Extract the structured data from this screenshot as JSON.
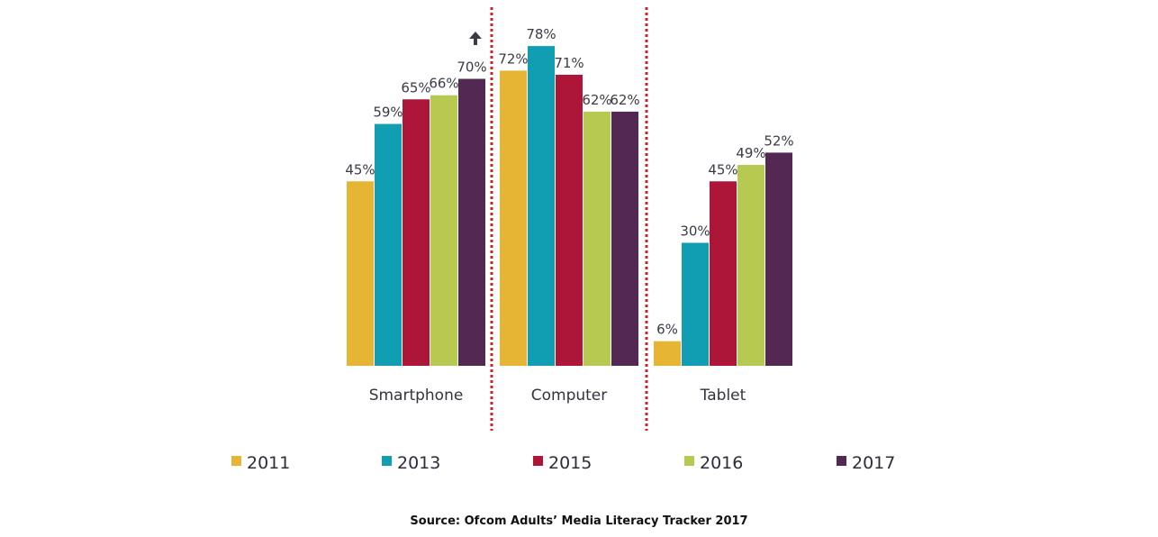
{
  "chart_data": {
    "type": "bar",
    "title": "",
    "xlabel": "",
    "ylabel": "",
    "ylim": [
      0,
      80
    ],
    "grid": false,
    "categories": [
      "Smartphone",
      "Computer",
      "Tablet"
    ],
    "value_suffix": "%",
    "series": [
      {
        "name": "2011",
        "color": "#e6b534",
        "values": [
          45,
          72,
          6
        ]
      },
      {
        "name": "2013",
        "color": "#119db2",
        "values": [
          59,
          78,
          30
        ]
      },
      {
        "name": "2015",
        "color": "#ad1639",
        "values": [
          65,
          71,
          45
        ]
      },
      {
        "name": "2016",
        "color": "#b7c951",
        "values": [
          66,
          62,
          49
        ]
      },
      {
        "name": "2017",
        "color": "#532954",
        "values": [
          70,
          62,
          52
        ]
      }
    ],
    "legend_position": "bottom",
    "annotations": [
      {
        "type": "up-arrow",
        "category": "Smartphone",
        "series": "2017"
      }
    ],
    "separator_color": "#d0202a"
  },
  "source": "Source: Ofcom Adults’ Media Literacy Tracker 2017"
}
